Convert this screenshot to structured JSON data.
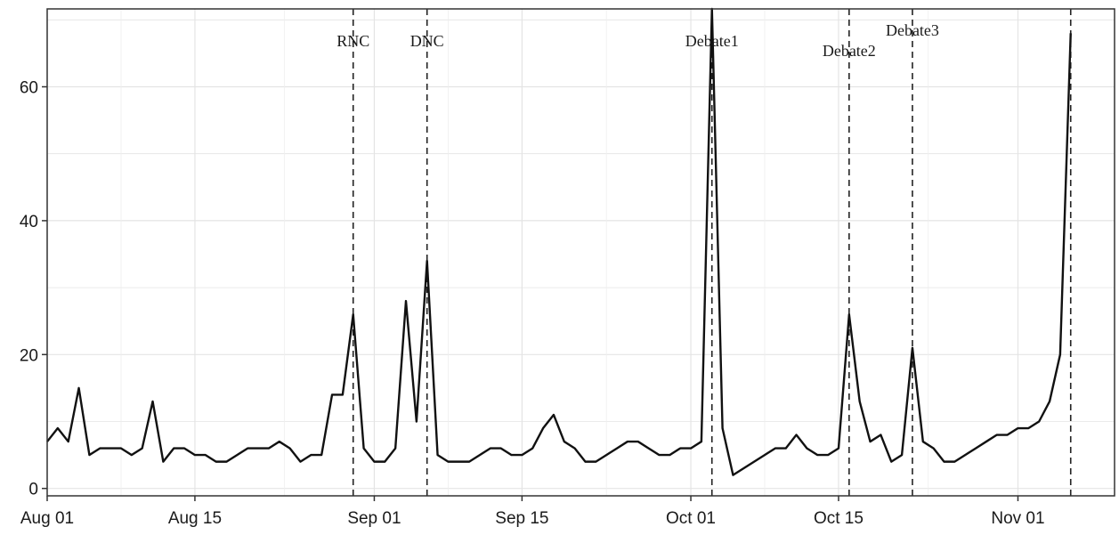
{
  "chart_data": {
    "type": "line",
    "title": "",
    "xlabel": "",
    "ylabel": "",
    "xlim": [
      "2012-08-01",
      "2012-11-05"
    ],
    "ylim": [
      0,
      70
    ],
    "yticks": [
      0,
      20,
      40,
      60
    ],
    "xticks": [
      {
        "date": "2012-08-01",
        "label": "Aug 01"
      },
      {
        "date": "2012-08-15",
        "label": "Aug 15"
      },
      {
        "date": "2012-09-01",
        "label": "Sep 01"
      },
      {
        "date": "2012-09-15",
        "label": "Sep 15"
      },
      {
        "date": "2012-10-01",
        "label": "Oct 01"
      },
      {
        "date": "2012-10-15",
        "label": "Oct 15"
      },
      {
        "date": "2012-11-01",
        "label": "Nov 01"
      }
    ],
    "grid": true,
    "series": [
      {
        "x": [
          "2012-08-01",
          "2012-08-02",
          "2012-08-03",
          "2012-08-04",
          "2012-08-05",
          "2012-08-06",
          "2012-08-07",
          "2012-08-08",
          "2012-08-09",
          "2012-08-10",
          "2012-08-11",
          "2012-08-12",
          "2012-08-13",
          "2012-08-14",
          "2012-08-15",
          "2012-08-16",
          "2012-08-17",
          "2012-08-18",
          "2012-08-19",
          "2012-08-20",
          "2012-08-21",
          "2012-08-22",
          "2012-08-23",
          "2012-08-24",
          "2012-08-25",
          "2012-08-26",
          "2012-08-27",
          "2012-08-28",
          "2012-08-29",
          "2012-08-30",
          "2012-08-31",
          "2012-09-01",
          "2012-09-02",
          "2012-09-03",
          "2012-09-04",
          "2012-09-05",
          "2012-09-06",
          "2012-09-07",
          "2012-09-08",
          "2012-09-09",
          "2012-09-10",
          "2012-09-11",
          "2012-09-12",
          "2012-09-13",
          "2012-09-14",
          "2012-09-15",
          "2012-09-16",
          "2012-09-17",
          "2012-09-18",
          "2012-09-19",
          "2012-09-20",
          "2012-09-21",
          "2012-09-22",
          "2012-09-23",
          "2012-09-24",
          "2012-09-25",
          "2012-09-26",
          "2012-09-27",
          "2012-09-28",
          "2012-09-29",
          "2012-09-30",
          "2012-10-01",
          "2012-10-02",
          "2012-10-03",
          "2012-10-04",
          "2012-10-05",
          "2012-10-06",
          "2012-10-07",
          "2012-10-08",
          "2012-10-09",
          "2012-10-10",
          "2012-10-11",
          "2012-10-12",
          "2012-10-13",
          "2012-10-14",
          "2012-10-15",
          "2012-10-16",
          "2012-10-17",
          "2012-10-18",
          "2012-10-19",
          "2012-10-20",
          "2012-10-21",
          "2012-10-22",
          "2012-10-23",
          "2012-10-24",
          "2012-10-25",
          "2012-10-26",
          "2012-10-27",
          "2012-10-28",
          "2012-10-29",
          "2012-10-30",
          "2012-10-31",
          "2012-11-01",
          "2012-11-02",
          "2012-11-03",
          "2012-11-04",
          "2012-11-05",
          "2012-11-06"
        ],
        "values": [
          7,
          9,
          7,
          15,
          5,
          6,
          6,
          6,
          5,
          6,
          13,
          4,
          6,
          6,
          5,
          5,
          4,
          4,
          5,
          6,
          6,
          6,
          7,
          6,
          4,
          5,
          5,
          14,
          14,
          26,
          6,
          4,
          4,
          6,
          28,
          10,
          34,
          5,
          4,
          4,
          4,
          5,
          6,
          6,
          5,
          5,
          6,
          9,
          11,
          7,
          6,
          4,
          4,
          5,
          6,
          7,
          7,
          6,
          5,
          5,
          6,
          6,
          7,
          72,
          9,
          2,
          3,
          4,
          5,
          6,
          6,
          8,
          6,
          5,
          5,
          6,
          26,
          13,
          7,
          8,
          4,
          5,
          21,
          7,
          6,
          4,
          4,
          5,
          6,
          7,
          8,
          8,
          9,
          9,
          10,
          13,
          20,
          68
        ]
      }
    ],
    "events": [
      {
        "date": "2012-08-30",
        "label": "RNC"
      },
      {
        "date": "2012-09-06",
        "label": "DNC"
      },
      {
        "date": "2012-10-03",
        "label": "Debate1"
      },
      {
        "date": "2012-10-16",
        "label": "Debate2"
      },
      {
        "date": "2012-10-22",
        "label": "Debate3"
      },
      {
        "date": "2012-11-06",
        "label": ""
      }
    ]
  }
}
